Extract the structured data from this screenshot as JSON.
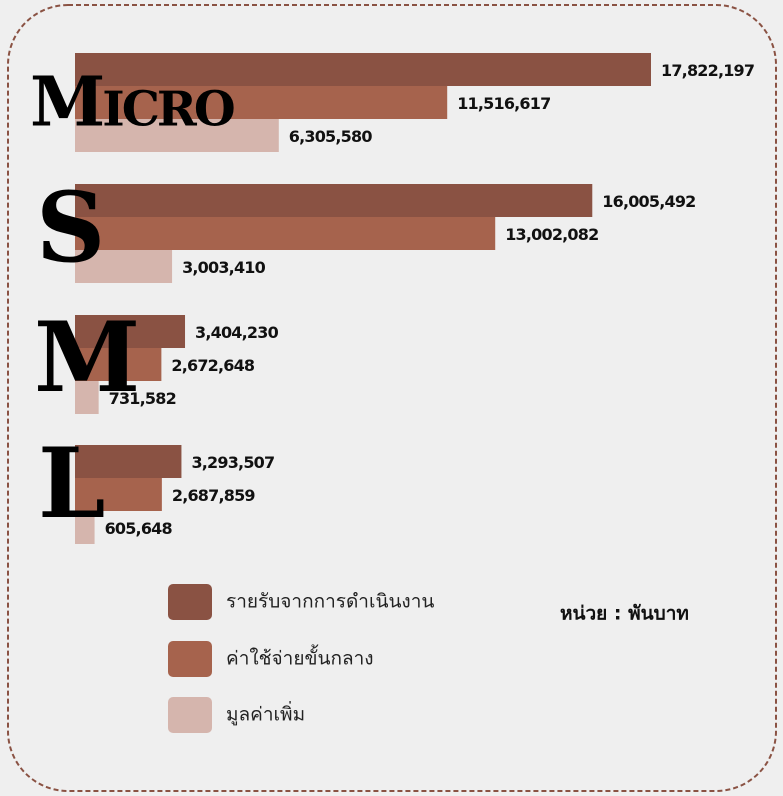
{
  "chart_data": {
    "type": "bar",
    "orientation": "horizontal",
    "categories": [
      "Micro",
      "S",
      "M",
      "L"
    ],
    "series": [
      {
        "name": "รายรับจากการดำเนินงาน",
        "color": "#8a5243",
        "values": [
          17822197,
          16005492,
          3404230,
          3293507
        ],
        "value_labels": [
          "17,822,197",
          "16,005,492",
          "3,404,230",
          "3,293,507"
        ]
      },
      {
        "name": "ค่าใช้จ่ายขั้นกลาง",
        "color": "#a6634d",
        "values": [
          11516617,
          13002082,
          2672648,
          2687859
        ],
        "value_labels": [
          "11,516,617",
          "13,002,082",
          "2,672,648",
          "2,687,859"
        ]
      },
      {
        "name": "มูลค่าเพิ่ม",
        "color": "#d5b5ad",
        "values": [
          6305580,
          3003410,
          731582,
          605648
        ],
        "value_labels": [
          "6,305,580",
          "3,003,410",
          "731,582",
          "605,648"
        ]
      }
    ],
    "unit_note": "หน่วย : พันบาท"
  }
}
